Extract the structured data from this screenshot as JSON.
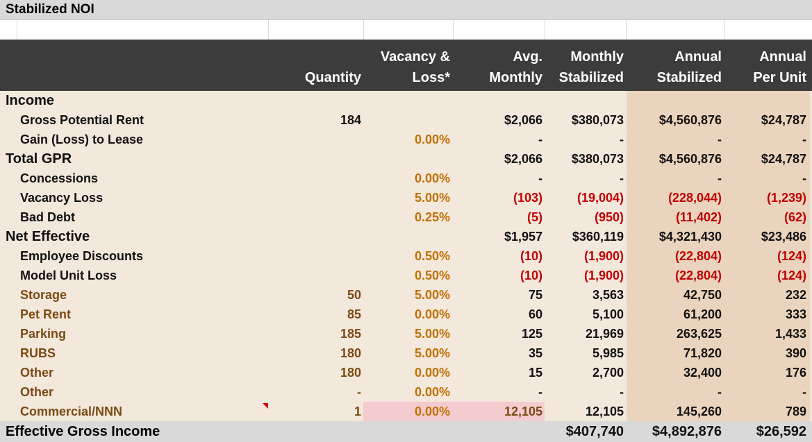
{
  "sheet": {
    "title": "Stabilized NOI"
  },
  "headers": {
    "quantity": [
      "",
      "Quantity"
    ],
    "vacancy": [
      "Vacancy &",
      "Loss*"
    ],
    "avg_monthly": [
      "Avg.",
      "Monthly"
    ],
    "monthly_stabilized": [
      "Monthly",
      "Stabilized"
    ],
    "annual_stabilized": [
      "Annual",
      "Stabilized"
    ],
    "annual_per_unit": [
      "Annual",
      "Per Unit"
    ]
  },
  "rows": [
    {
      "label": "Income",
      "level": 1,
      "style": "black",
      "qty": "",
      "vac": "",
      "avg": "",
      "mon": "",
      "ann": "",
      "pu": ""
    },
    {
      "label": "Gross Potential Rent",
      "level": 2,
      "style": "black",
      "qty": "184",
      "vac": "",
      "avg": "$2,066",
      "mon": "$380,073",
      "ann": "$4,560,876",
      "pu": "$24,787"
    },
    {
      "label": "Gain (Loss) to Lease",
      "level": 2,
      "style": "black",
      "qty": "",
      "vac": "0.00%",
      "avg": "-",
      "mon": "-",
      "ann": "-",
      "pu": "-"
    },
    {
      "label": "Total GPR",
      "level": 1,
      "style": "black",
      "qty": "",
      "vac": "",
      "avg": "$2,066",
      "mon": "$380,073",
      "ann": "$4,560,876",
      "pu": "$24,787"
    },
    {
      "label": "Concessions",
      "level": 2,
      "style": "black",
      "qty": "",
      "vac": "0.00%",
      "avg": "-",
      "mon": "-",
      "ann": "-",
      "pu": "-"
    },
    {
      "label": "Vacancy Loss",
      "level": 2,
      "style": "black",
      "qty": "",
      "vac": "5.00%",
      "avg": "(103)",
      "mon": "(19,004)",
      "ann": "(228,044)",
      "pu": "(1,239)",
      "neg": true
    },
    {
      "label": "Bad Debt",
      "level": 2,
      "style": "black",
      "qty": "",
      "vac": "0.25%",
      "avg": "(5)",
      "mon": "(950)",
      "ann": "(11,402)",
      "pu": "(62)",
      "neg": true
    },
    {
      "label": "Net Effective",
      "level": 1,
      "style": "black",
      "qty": "",
      "vac": "",
      "avg": "$1,957",
      "mon": "$360,119",
      "ann": "$4,321,430",
      "pu": "$23,486"
    },
    {
      "label": "Employee Discounts",
      "level": 2,
      "style": "black",
      "qty": "",
      "vac": "0.50%",
      "avg": "(10)",
      "mon": "(1,900)",
      "ann": "(22,804)",
      "pu": "(124)",
      "neg": true
    },
    {
      "label": "Model Unit Loss",
      "level": 2,
      "style": "black",
      "qty": "",
      "vac": "0.50%",
      "avg": "(10)",
      "mon": "(1,900)",
      "ann": "(22,804)",
      "pu": "(124)",
      "neg": true
    },
    {
      "label": "Storage",
      "level": 2,
      "style": "brown",
      "qty": "50",
      "vac": "5.00%",
      "avg": "75",
      "mon": "3,563",
      "ann": "42,750",
      "pu": "232"
    },
    {
      "label": "Pet Rent",
      "level": 2,
      "style": "brown",
      "qty": "85",
      "vac": "0.00%",
      "avg": "60",
      "mon": "5,100",
      "ann": "61,200",
      "pu": "333"
    },
    {
      "label": "Parking",
      "level": 2,
      "style": "brown",
      "qty": "185",
      "vac": "5.00%",
      "avg": "125",
      "mon": "21,969",
      "ann": "263,625",
      "pu": "1,433"
    },
    {
      "label": "RUBS",
      "level": 2,
      "style": "brown",
      "qty": "180",
      "vac": "5.00%",
      "avg": "35",
      "mon": "5,985",
      "ann": "71,820",
      "pu": "390"
    },
    {
      "label": "Other",
      "level": 2,
      "style": "brown",
      "qty": "180",
      "vac": "0.00%",
      "avg": "15",
      "mon": "2,700",
      "ann": "32,400",
      "pu": "176"
    },
    {
      "label": "Other",
      "level": 2,
      "style": "brown",
      "qty": "-",
      "vac": "0.00%",
      "avg": "-",
      "mon": "-",
      "ann": "-",
      "pu": "-"
    },
    {
      "label": "Commercial/NNN",
      "level": 2,
      "style": "brown",
      "qty": "1",
      "vac": "0.00%",
      "avg": "12,105",
      "mon": "12,105",
      "ann": "145,260",
      "pu": "789",
      "pink": true,
      "comment": true
    }
  ],
  "footer": {
    "label": "Effective Gross Income",
    "mon": "$407,740",
    "ann": "$4,892,876",
    "pu": "$26,592"
  },
  "colors": {
    "header_bg": "#3c3c3c",
    "body_bg": "#f3e8dc",
    "annual_bg": "#ead4bd",
    "input_orange": "#c07000",
    "label_brown": "#7a4a12",
    "negative_red": "#c00000",
    "highlight_pink": "#f4cccf"
  }
}
